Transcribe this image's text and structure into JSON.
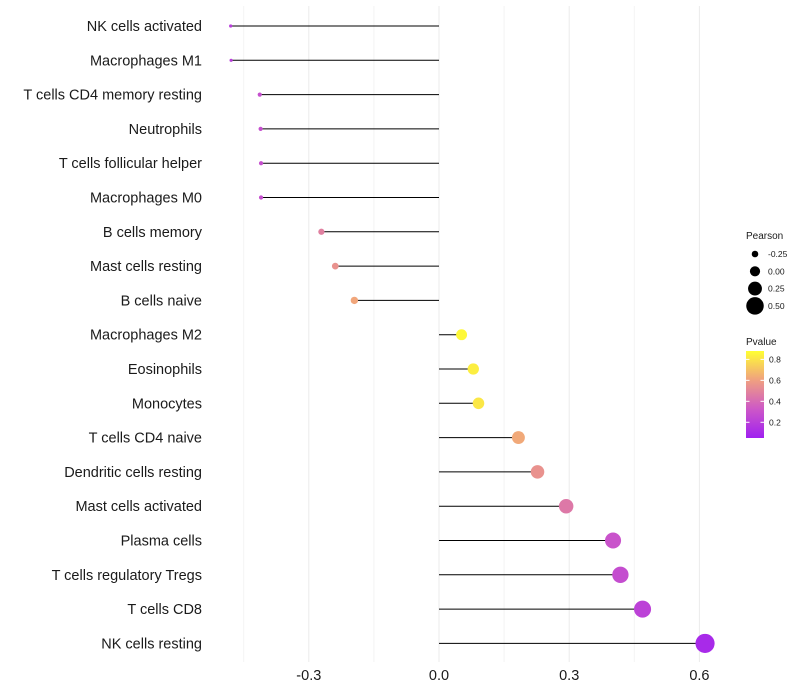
{
  "chart_data": {
    "type": "lollipop",
    "title": "",
    "xlabel": "",
    "ylabel": "",
    "xlim": [
      -0.5,
      0.62
    ],
    "x_ticks": [
      -0.3,
      0.0,
      0.3,
      0.6
    ],
    "x_tick_labels": [
      "-0.3",
      "0.0",
      "0.3",
      "0.6"
    ],
    "grid": true,
    "categories": [
      "NK cells activated",
      "Macrophages M1",
      "T cells CD4 memory resting",
      "Neutrophils",
      "T cells follicular helper",
      "Macrophages M0",
      "B cells memory",
      "Mast cells resting",
      "B cells naive",
      "Macrophages M2",
      "Eosinophils",
      "Monocytes",
      "T cells CD4 naive",
      "Dendritic cells resting",
      "Mast cells activated",
      "Plasma cells",
      "T cells regulatory  Tregs",
      "T cells CD8",
      "NK cells resting"
    ],
    "series": [
      {
        "name": "Pearson",
        "values": [
          -0.48,
          -0.479,
          -0.413,
          -0.411,
          -0.41,
          -0.41,
          -0.271,
          -0.239,
          -0.195,
          0.052,
          0.079,
          0.091,
          0.183,
          0.227,
          0.293,
          0.401,
          0.418,
          0.469,
          0.613
        ]
      },
      {
        "name": "Pvalue",
        "values": [
          0.2,
          0.2,
          0.28,
          0.28,
          0.28,
          0.28,
          0.48,
          0.55,
          0.62,
          0.86,
          0.83,
          0.81,
          0.63,
          0.55,
          0.45,
          0.3,
          0.27,
          0.22,
          0.1
        ]
      }
    ],
    "legends": {
      "size": {
        "title": "Pearson",
        "position": "right",
        "values": [
          -0.25,
          0.0,
          0.25,
          0.5
        ],
        "labels": [
          "-0.25",
          "0.00",
          "0.25",
          "0.50"
        ]
      },
      "color": {
        "title": "Pvalue",
        "position": "right",
        "range": [
          0.05,
          0.88
        ],
        "ticks": [
          0.2,
          0.4,
          0.6,
          0.8
        ],
        "tick_labels": [
          "0.2",
          "0.4",
          "0.6",
          "0.8"
        ],
        "colors": [
          "#a020f0",
          "#cd58c7",
          "#f0a080",
          "#ffff33"
        ]
      }
    }
  }
}
